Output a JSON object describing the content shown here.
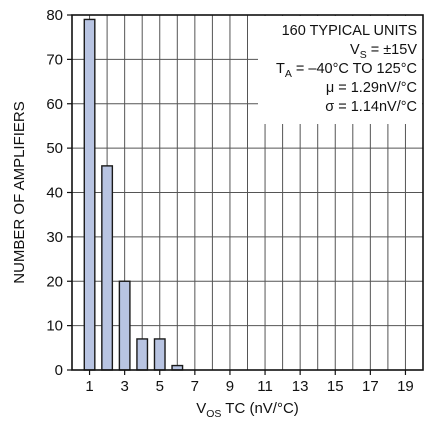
{
  "chart_data": {
    "type": "bar",
    "title": "",
    "xlabel": {
      "main": "V",
      "sub": "OS",
      "rest": " TC (nV/°C)"
    },
    "ylabel": "NUMBER OF AMPLIFIERS",
    "xlim": [
      0,
      20
    ],
    "ylim": [
      0,
      80
    ],
    "x_ticks": [
      1,
      3,
      5,
      7,
      9,
      11,
      13,
      15,
      17,
      19
    ],
    "y_ticks": [
      0,
      10,
      20,
      30,
      40,
      50,
      60,
      70,
      80
    ],
    "grid": true,
    "bar_color": "#b8c4e2",
    "bars": [
      {
        "x": 1,
        "value": 79
      },
      {
        "x": 2,
        "value": 46
      },
      {
        "x": 3,
        "value": 20
      },
      {
        "x": 4,
        "value": 7
      },
      {
        "x": 5,
        "value": 7
      },
      {
        "x": 6,
        "value": 1
      }
    ],
    "annotations": [
      {
        "parts": [
          {
            "t": "160 TYPICAL UNITS"
          }
        ]
      },
      {
        "parts": [
          {
            "t": "V"
          },
          {
            "t": "S",
            "sub": true
          },
          {
            "t": " = ±15V"
          }
        ]
      },
      {
        "parts": [
          {
            "t": "T"
          },
          {
            "t": "A",
            "sub": true
          },
          {
            "t": " = –40°C TO 125°C"
          }
        ]
      },
      {
        "parts": [
          {
            "t": "μ = 1.29nV/°C"
          }
        ]
      },
      {
        "parts": [
          {
            "t": "σ = 1.14nV/°C"
          }
        ]
      }
    ]
  }
}
